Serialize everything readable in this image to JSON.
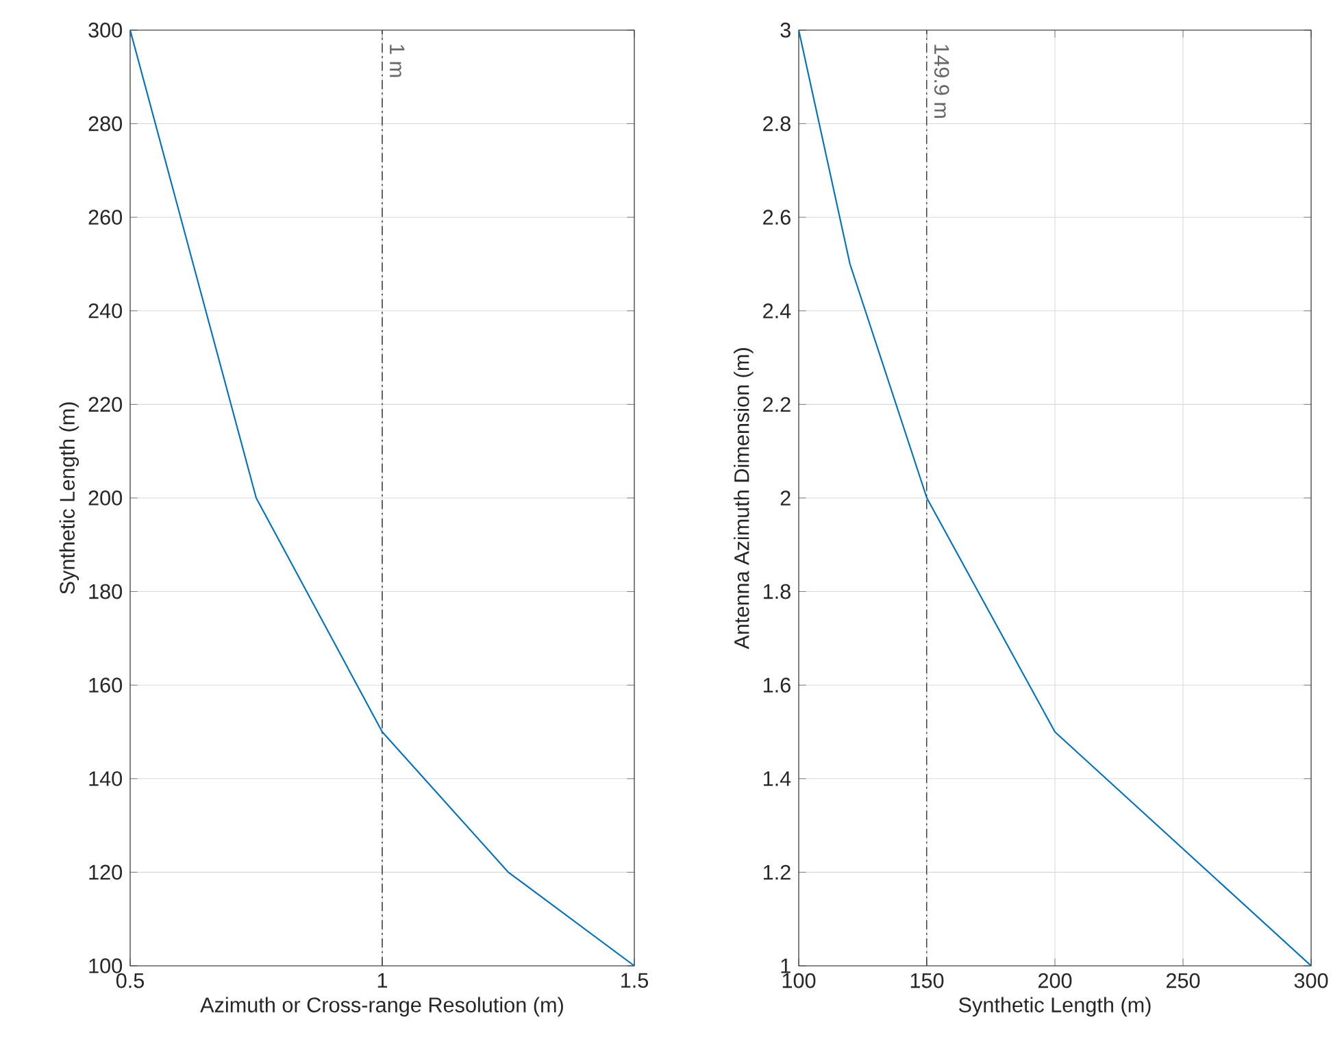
{
  "chart_data": [
    {
      "type": "line",
      "xlabel": "Azimuth or Cross-range Resolution (m)",
      "ylabel": "Synthetic Length (m)",
      "x": [
        0.5,
        0.75,
        1,
        1.25,
        1.5
      ],
      "series": [
        {
          "color": "#0072bd",
          "values": [
            300,
            200,
            150,
            120,
            100
          ]
        }
      ],
      "xlim": [
        0.5,
        1.5
      ],
      "ylim": [
        100,
        300
      ],
      "xticks": [
        0.5,
        1,
        1.5
      ],
      "yticks": [
        100,
        120,
        140,
        160,
        180,
        200,
        220,
        240,
        260,
        280,
        300
      ],
      "grid": true,
      "ref_lines": [
        {
          "axis": "x",
          "value": 1,
          "label": "1 m",
          "color": "#404040"
        }
      ]
    },
    {
      "type": "line",
      "xlabel": "Synthetic Length (m)",
      "ylabel": "Antenna Azimuth Dimension (m)",
      "x": [
        100,
        120,
        150,
        200,
        300
      ],
      "series": [
        {
          "color": "#0072bd",
          "values": [
            3,
            2.5,
            2,
            1.5,
            1
          ]
        }
      ],
      "xlim": [
        100,
        300
      ],
      "ylim": [
        1,
        3
      ],
      "xticks": [
        100,
        150,
        200,
        250,
        300
      ],
      "yticks": [
        1,
        1.2,
        1.4,
        1.6,
        1.8,
        2,
        2.2,
        2.4,
        2.6,
        2.8,
        3
      ],
      "grid": true,
      "ref_lines": [
        {
          "axis": "x",
          "value": 149.9,
          "label": "149.9 m",
          "color": "#404040"
        }
      ]
    }
  ]
}
